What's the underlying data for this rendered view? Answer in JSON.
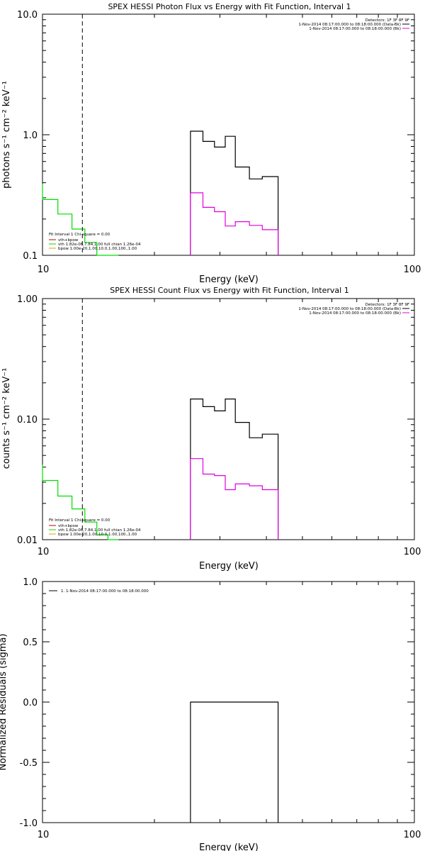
{
  "colors": {
    "background": "#ffffff",
    "axis": "#000000",
    "data_series": "#000000",
    "background_series": "#e000e0",
    "fit_component": "#00dd00",
    "vth_component": "#c00000",
    "bpow_component": "#e0a000"
  },
  "chart_data": [
    {
      "type": "line",
      "title": "SPEX HESSI Photon Flux vs Energy with Fit Function, Interval 1",
      "xlabel": "Energy (keV)",
      "ylabel": "photons s⁻¹ cm⁻² keV⁻¹",
      "xscale": "log",
      "yscale": "log",
      "xlim": [
        10,
        100
      ],
      "ylim": [
        0.1,
        10
      ],
      "x_ticks": [
        "10",
        "100"
      ],
      "y_ticks": [
        "0.1",
        "1.0",
        "10.0"
      ],
      "vline_x": 12.8,
      "legend_top": [
        {
          "text": "Detectors: 1F 3F 8F 9F",
          "color": "#000000"
        },
        {
          "text": "1-Nov-2014 08:17:00.000 to 08:18:00.000 (Data-Bk)",
          "color": "#000000"
        },
        {
          "text": "1-Nov-2014 08:17:00.000 to 08:18:00.000 (Bk)",
          "color": "#e000e0"
        }
      ],
      "legend_fit": [
        {
          "text": "Fit Interval  1    Chi-square = 0.00",
          "color": "#000000"
        },
        {
          "text": "vth+bpow",
          "color": "#c00000"
        },
        {
          "text": "vth 1.82e-06,7.84,1.00  full chian 1.26e-04",
          "color": "#00dd00"
        },
        {
          "text": "bpow 1.00e-20,1.00,10.0,1.00,100.,1.00",
          "color": "#e0a000"
        }
      ],
      "series": [
        {
          "name": "1-Nov-2014 08:17:00.000 to 08:18:00.000 (Data-Bk)",
          "color": "#000000",
          "edges": [
            25,
            27,
            29,
            31,
            33,
            36,
            39,
            43
          ],
          "values": [
            1.07,
            0.88,
            0.79,
            0.97,
            0.54,
            0.43,
            0.45
          ]
        },
        {
          "name": "1-Nov-2014 08:17:00.000 to 08:18:00.000 (Bk)",
          "color": "#e000e0",
          "edges": [
            25,
            27,
            29,
            31,
            33,
            36,
            39,
            43
          ],
          "values": [
            0.33,
            0.25,
            0.23,
            0.175,
            0.19,
            0.177,
            0.163
          ]
        },
        {
          "name": "vth",
          "color": "#00dd00",
          "edges": [
            10,
            11,
            12,
            13,
            14,
            15,
            16
          ],
          "values": [
            0.29,
            0.22,
            0.165,
            0.128,
            0.097,
            0.078
          ]
        }
      ]
    },
    {
      "type": "line",
      "title": "SPEX HESSI Count Flux vs Energy with Fit Function, Interval 1",
      "xlabel": "Energy (keV)",
      "ylabel": "counts s⁻¹ cm⁻² keV⁻¹",
      "xscale": "log",
      "yscale": "log",
      "xlim": [
        10,
        100
      ],
      "ylim": [
        0.01,
        1
      ],
      "x_ticks": [
        "10",
        "100"
      ],
      "y_ticks": [
        "0.01",
        "0.10",
        "1.00"
      ],
      "vline_x": 12.8,
      "legend_top": [
        {
          "text": "Detectors: 1F 3F 8F 9F",
          "color": "#000000"
        },
        {
          "text": "1-Nov-2014 08:17:00.000 to 08:18:00.000 (Data-Bk)",
          "color": "#000000"
        },
        {
          "text": "1-Nov-2014 08:17:00.000 to 08:18:00.000 (Bk)",
          "color": "#e000e0"
        }
      ],
      "legend_fit": [
        {
          "text": "Fit Interval  1    Chi-square = 0.00",
          "color": "#000000"
        },
        {
          "text": "vth+bpow",
          "color": "#c00000"
        },
        {
          "text": "vth 1.82e-06,7.84,1.00  full chian 1.26e-04",
          "color": "#00dd00"
        },
        {
          "text": "bpow 1.00e-20,1.00,10.0,1.00,100.,1.00",
          "color": "#e0a000"
        }
      ],
      "series": [
        {
          "name": "1-Nov-2014 08:17:00.000 to 08:18:00.000 (Data-Bk)",
          "color": "#000000",
          "edges": [
            25,
            27,
            29,
            31,
            33,
            36,
            39,
            43
          ],
          "values": [
            0.147,
            0.127,
            0.117,
            0.147,
            0.094,
            0.07,
            0.075
          ]
        },
        {
          "name": "1-Nov-2014 08:17:00.000 to 08:18:00.000 (Bk)",
          "color": "#e000e0",
          "edges": [
            25,
            27,
            29,
            31,
            33,
            36,
            39,
            43
          ],
          "values": [
            0.047,
            0.035,
            0.034,
            0.026,
            0.029,
            0.028,
            0.026
          ]
        },
        {
          "name": "vth",
          "color": "#00dd00",
          "edges": [
            10,
            11,
            12,
            13,
            14,
            15,
            16
          ],
          "values": [
            0.031,
            0.023,
            0.018,
            0.014,
            0.011,
            0.0085
          ]
        }
      ]
    },
    {
      "type": "line",
      "title": "",
      "xlabel": "Energy (keV)",
      "ylabel": "Normalized Residuals (sigma)",
      "xscale": "log",
      "yscale": "linear",
      "xlim": [
        10,
        100
      ],
      "ylim": [
        -1,
        1
      ],
      "x_ticks": [
        "10",
        "100"
      ],
      "y_ticks": [
        "-1.0",
        "-0.5",
        "0.0",
        "0.5",
        "1.0"
      ],
      "legend_top": [
        {
          "text": "1. 1-Nov-2014 08:17:00.000 to 08:18:00.000",
          "color": "#000000"
        }
      ],
      "series": [
        {
          "name": "1. 1-Nov-2014 08:17:00.000 to 08:18:00.000",
          "color": "#000000",
          "edges": [
            25,
            43
          ],
          "values": [
            0.0
          ]
        }
      ]
    }
  ]
}
